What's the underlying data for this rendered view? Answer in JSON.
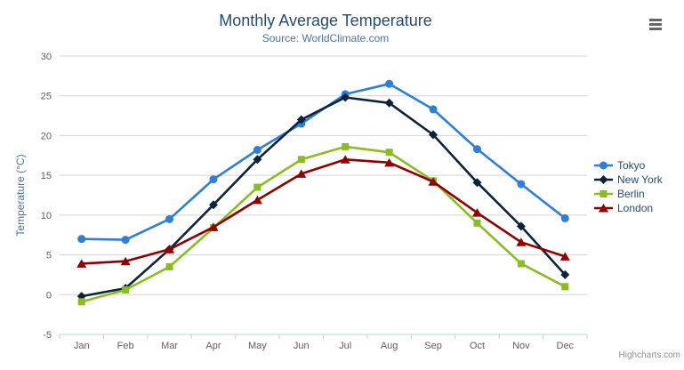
{
  "chart": {
    "credits": "Highcharts.com",
    "export_menu_icon": "hamburger-icon"
  },
  "colors": {
    "background": "#ffffff",
    "title": "#274b6d",
    "subtitle": "#4d759e",
    "axis_title": "#4d759e",
    "tick_label": "#606060",
    "grid": "#d4d4d4",
    "axis_line": "#c0d0e0",
    "legend_text": "#274b6d",
    "credits": "#909090",
    "export_icon": "#666666"
  },
  "chart_data": {
    "type": "line",
    "title": "Monthly Average Temperature",
    "subtitle": "Source: WorldClimate.com",
    "categories": [
      "Jan",
      "Feb",
      "Mar",
      "Apr",
      "May",
      "Jun",
      "Jul",
      "Aug",
      "Sep",
      "Oct",
      "Nov",
      "Dec"
    ],
    "xlabel": "",
    "ylabel": "Temperature (°C)",
    "ylim": [
      -5,
      30
    ],
    "yticks": [
      -5,
      0,
      5,
      10,
      15,
      20,
      25,
      30
    ],
    "grid": "horizontal",
    "legend_position": "right",
    "series": [
      {
        "name": "Tokyo",
        "color": "#2f7ed8",
        "marker": "circle",
        "values": [
          7.0,
          6.9,
          9.5,
          14.5,
          18.2,
          21.5,
          25.2,
          26.5,
          23.3,
          18.3,
          13.9,
          9.6
        ]
      },
      {
        "name": "New York",
        "color": "#0d233a",
        "marker": "diamond",
        "values": [
          -0.2,
          0.8,
          5.7,
          11.3,
          17.0,
          22.0,
          24.8,
          24.1,
          20.1,
          14.1,
          8.6,
          2.5
        ]
      },
      {
        "name": "Berlin",
        "color": "#8bbc21",
        "marker": "square",
        "values": [
          -0.9,
          0.6,
          3.5,
          8.4,
          13.5,
          17.0,
          18.6,
          17.9,
          14.3,
          9.0,
          3.9,
          1.0
        ]
      },
      {
        "name": "London",
        "color": "#910000",
        "marker": "triangle",
        "values": [
          3.9,
          4.2,
          5.7,
          8.5,
          11.9,
          15.2,
          17.0,
          16.6,
          14.2,
          10.3,
          6.6,
          4.8
        ]
      }
    ]
  }
}
